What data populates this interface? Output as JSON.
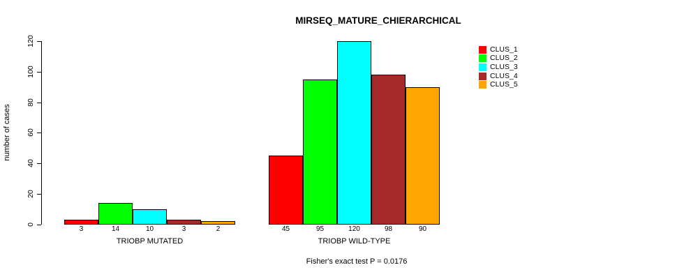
{
  "chart_data": {
    "type": "bar",
    "title": "MIRSEQ_MATURE_CHIERARCHICAL",
    "subtitle": "Fisher's exact test P = 0.0176",
    "ylabel": "number of cases",
    "xlabel": "",
    "ylim": [
      0,
      120
    ],
    "yticks": [
      0,
      20,
      40,
      60,
      80,
      100,
      120
    ],
    "grid": false,
    "legend_position": "right",
    "categories": [
      "TRIOBP MUTATED",
      "TRIOBP WILD-TYPE"
    ],
    "series": [
      {
        "name": "CLUS_1",
        "color": "#FF0000",
        "values": [
          3,
          45
        ]
      },
      {
        "name": "CLUS_2",
        "color": "#00FF00",
        "values": [
          14,
          95
        ]
      },
      {
        "name": "CLUS_3",
        "color": "#00FFFF",
        "values": [
          10,
          120
        ]
      },
      {
        "name": "CLUS_4",
        "color": "#A52A2A",
        "values": [
          3,
          98
        ]
      },
      {
        "name": "CLUS_5",
        "color": "#FFA500",
        "values": [
          2,
          90
        ]
      }
    ],
    "bar_value_labels": [
      [
        3,
        14,
        10,
        3,
        2
      ],
      [
        45,
        95,
        120,
        98,
        90
      ]
    ]
  }
}
